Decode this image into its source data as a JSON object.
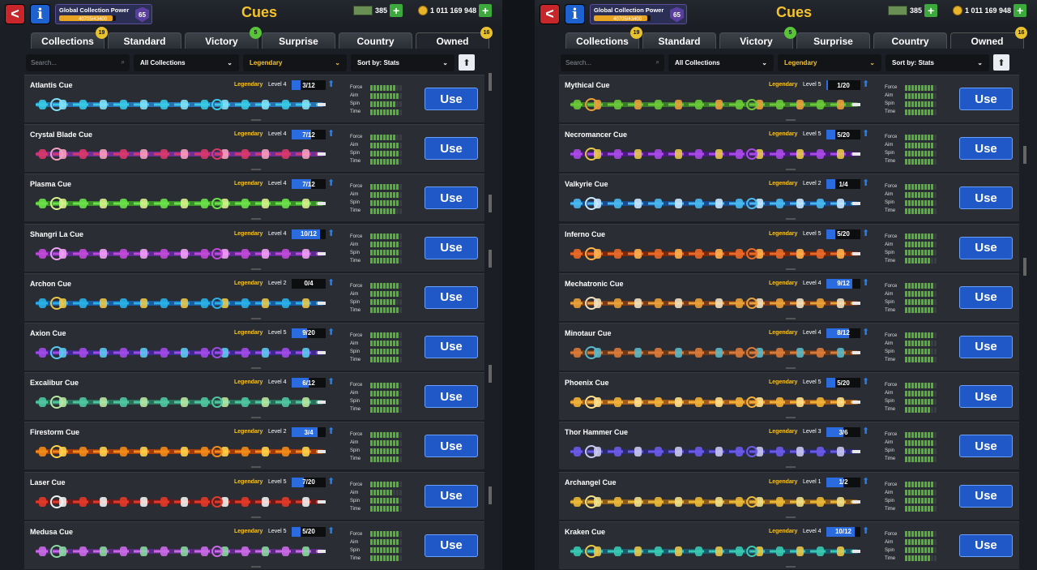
{
  "colors": {
    "accent_gold": "#f5c329",
    "use_blue": "#2059c7",
    "stat_green": "#4fb52e",
    "back_red": "#c8262a"
  },
  "panels": [
    {
      "gcp_label": "Global Collection Power",
      "gcp_value": "40705/43400",
      "gcp_level": "65",
      "screen_title": "Cues",
      "cash": "385",
      "coins": "1 011 169 948",
      "tabs": [
        {
          "label": "Collections",
          "badge": "19"
        },
        {
          "label": "Standard",
          "badge": ""
        },
        {
          "label": "Victory",
          "badge": "5"
        },
        {
          "label": "Surprise",
          "badge": ""
        },
        {
          "label": "Country",
          "badge": ""
        },
        {
          "label": "Owned",
          "badge": "16"
        }
      ],
      "search_placeholder": "Search...",
      "filter_collection": "All Collections",
      "filter_rarity": "Legendary",
      "filter_sort": "Sort by: Stats",
      "cues": [
        {
          "name": "Atlantis Cue",
          "rarity": "Legendary",
          "level": "Level 4",
          "progress": "3/12",
          "fill": 0.25,
          "colors": [
            "#39c9e5",
            "#7fe1f7",
            "#2a6fb0"
          ],
          "stats": [
            8,
            9,
            8,
            9
          ],
          "use": "Use"
        },
        {
          "name": "Crystal Blade Cue",
          "rarity": "Legendary",
          "level": "Level 4",
          "progress": "7/12",
          "fill": 0.58,
          "colors": [
            "#d6386b",
            "#f4a0c0",
            "#6e2f96"
          ],
          "stats": [
            8,
            9,
            9,
            9
          ],
          "use": "Use"
        },
        {
          "name": "Plasma Cue",
          "rarity": "Legendary",
          "level": "Level 4",
          "progress": "7/12",
          "fill": 0.58,
          "colors": [
            "#6ce04a",
            "#d8f08c",
            "#3a8e2a"
          ],
          "stats": [
            9,
            9,
            9,
            8
          ],
          "use": "Use"
        },
        {
          "name": "Shangri La Cue",
          "rarity": "Legendary",
          "level": "Level 4",
          "progress": "10/12",
          "fill": 0.83,
          "colors": [
            "#c04ad8",
            "#f0a0f4",
            "#5a2a8e"
          ],
          "stats": [
            9,
            9,
            9,
            9
          ],
          "use": "Use"
        },
        {
          "name": "Archon Cue",
          "rarity": "Legendary",
          "level": "Level 2",
          "progress": "0/4",
          "fill": 0,
          "colors": [
            "#2ab0e6",
            "#e8c64a",
            "#1a5a9e"
          ],
          "stats": [
            9,
            9,
            8,
            9
          ],
          "use": "Use"
        },
        {
          "name": "Axion Cue",
          "rarity": "Legendary",
          "level": "Level 5",
          "progress": "9/20",
          "fill": 0.45,
          "colors": [
            "#a04ae6",
            "#5ac8f0",
            "#3a2a8e"
          ],
          "stats": [
            9,
            9,
            9,
            9
          ],
          "use": "Use"
        },
        {
          "name": "Excalibur Cue",
          "rarity": "Legendary",
          "level": "Level 4",
          "progress": "6/12",
          "fill": 0.5,
          "colors": [
            "#4fc49e",
            "#b8e6a0",
            "#2a6e5a"
          ],
          "stats": [
            9,
            9,
            9,
            9
          ],
          "use": "Use"
        },
        {
          "name": "Firestorm Cue",
          "rarity": "Legendary",
          "level": "Level 2",
          "progress": "3/4",
          "fill": 0.75,
          "colors": [
            "#f08a1a",
            "#ffd24a",
            "#a03a0a"
          ],
          "stats": [
            9,
            9,
            9,
            9
          ],
          "use": "Use"
        },
        {
          "name": "Laser Cue",
          "rarity": "Legendary",
          "level": "Level 5",
          "progress": "7/20",
          "fill": 0.35,
          "colors": [
            "#e03a2a",
            "#f0f0f0",
            "#6a1a1a"
          ],
          "stats": [
            9,
            7,
            9,
            9
          ],
          "use": "Use"
        },
        {
          "name": "Medusa Cue",
          "rarity": "Legendary",
          "level": "Level 5",
          "progress": "5/20",
          "fill": 0.25,
          "colors": [
            "#c86ae6",
            "#8ad6a0",
            "#5a2a7e"
          ],
          "stats": [
            9,
            9,
            9,
            9
          ],
          "use": "Use"
        }
      ]
    },
    {
      "gcp_label": "Global Collection Power",
      "gcp_value": "40705/43400",
      "gcp_level": "65",
      "screen_title": "Cues",
      "cash": "385",
      "coins": "1 011 169 948",
      "tabs": [
        {
          "label": "Collections",
          "badge": "19"
        },
        {
          "label": "Standard",
          "badge": ""
        },
        {
          "label": "Victory",
          "badge": "5"
        },
        {
          "label": "Surprise",
          "badge": ""
        },
        {
          "label": "Country",
          "badge": ""
        },
        {
          "label": "Owned",
          "badge": "16"
        }
      ],
      "search_placeholder": "Search...",
      "filter_collection": "All Collections",
      "filter_rarity": "Legendary",
      "filter_sort": "Sort by: Stats",
      "cues": [
        {
          "name": "Mythical Cue",
          "rarity": "Legendary",
          "level": "Level 5",
          "progress": "1/20",
          "fill": 0.05,
          "colors": [
            "#6ac83a",
            "#e8a03a",
            "#3a7a2a"
          ],
          "stats": [
            9,
            9,
            9,
            9
          ],
          "use": "Use"
        },
        {
          "name": "Necromancer Cue",
          "rarity": "Legendary",
          "level": "Level 5",
          "progress": "5/20",
          "fill": 0.25,
          "colors": [
            "#a84ae6",
            "#e8c64a",
            "#4a1a7e"
          ],
          "stats": [
            9,
            9,
            9,
            9
          ],
          "use": "Use"
        },
        {
          "name": "Valkyrie Cue",
          "rarity": "Legendary",
          "level": "Level 2",
          "progress": "1/4",
          "fill": 0.25,
          "colors": [
            "#4ab8f0",
            "#c8e8ff",
            "#1a4a8e"
          ],
          "stats": [
            9,
            9,
            9,
            9
          ],
          "use": "Use"
        },
        {
          "name": "Inferno Cue",
          "rarity": "Legendary",
          "level": "Level 5",
          "progress": "5/20",
          "fill": 0.25,
          "colors": [
            "#e86a2a",
            "#ffb04a",
            "#7a2a0a"
          ],
          "stats": [
            9,
            9,
            9,
            8
          ],
          "use": "Use"
        },
        {
          "name": "Mechatronic Cue",
          "rarity": "Legendary",
          "level": "Level 4",
          "progress": "9/12",
          "fill": 0.75,
          "colors": [
            "#e8a03a",
            "#f0e0c0",
            "#7a3a1a"
          ],
          "stats": [
            9,
            9,
            9,
            9
          ],
          "use": "Use"
        },
        {
          "name": "Minotaur Cue",
          "rarity": "Legendary",
          "level": "Level 4",
          "progress": "8/12",
          "fill": 0.67,
          "colors": [
            "#d87a3a",
            "#5ab8c8",
            "#6a3a1a"
          ],
          "stats": [
            9,
            8,
            8,
            9
          ],
          "use": "Use"
        },
        {
          "name": "Phoenix Cue",
          "rarity": "Legendary",
          "level": "Level 5",
          "progress": "5/20",
          "fill": 0.25,
          "colors": [
            "#f0b03a",
            "#ffe08a",
            "#a05a1a"
          ],
          "stats": [
            9,
            9,
            9,
            8
          ],
          "use": "Use"
        },
        {
          "name": "Thor Hammer Cue",
          "rarity": "Legendary",
          "level": "Level 3",
          "progress": "3/6",
          "fill": 0.5,
          "colors": [
            "#6a5ae6",
            "#c8c8f0",
            "#2a2a6e"
          ],
          "stats": [
            9,
            9,
            9,
            9
          ],
          "use": "Use"
        },
        {
          "name": "Archangel Cue",
          "rarity": "Legendary",
          "level": "Level 1",
          "progress": "1/2",
          "fill": 0.5,
          "colors": [
            "#e8b83a",
            "#f0e08a",
            "#8a5a1a"
          ],
          "stats": [
            9,
            9,
            9,
            9
          ],
          "use": "Use"
        },
        {
          "name": "Kraken Cue",
          "rarity": "Legendary",
          "level": "Level 4",
          "progress": "10/12",
          "fill": 0.83,
          "colors": [
            "#3ac8b0",
            "#e8c64a",
            "#1a5a6e"
          ],
          "stats": [
            9,
            9,
            9,
            8
          ],
          "use": "Use"
        }
      ]
    }
  ],
  "stat_labels": [
    "Force",
    "Aim",
    "Spin",
    "Time"
  ]
}
